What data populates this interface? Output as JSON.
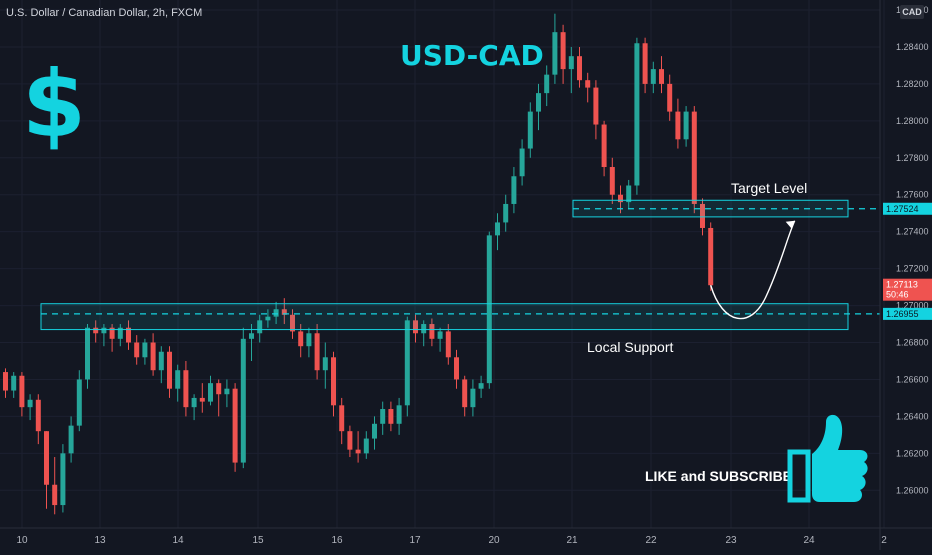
{
  "header": {
    "symbol_line": "U.S. Dollar / Canadian Dollar, 2h, FXCM",
    "currency_button": "CAD"
  },
  "annotations": {
    "title": "USD-CAD",
    "target_label": "Target Level",
    "support_label": "Local Support",
    "cta": "LIKE and SUBSCRIBE"
  },
  "colors": {
    "background": "#131722",
    "bull": "#26a69a",
    "bear": "#ef5350",
    "zone": "#14d3e0",
    "accent": "#14d3e0"
  },
  "icons": [
    "dollar-icon",
    "thumbs-up-icon"
  ],
  "chart_data": {
    "type": "candlestick",
    "symbol": "U.S. Dollar / Canadian Dollar",
    "interval": "2h",
    "source": "FXCM",
    "ylim": [
      1.2585,
      1.286
    ],
    "y_ticks": [
      "1.26000",
      "1.26200",
      "1.26400",
      "1.26600",
      "1.26800",
      "1.27000",
      "1.27200",
      "1.27400",
      "1.27600",
      "1.27800",
      "1.28000",
      "1.28200",
      "1.28400",
      "1.28600"
    ],
    "x_ticks": [
      "10",
      "13",
      "14",
      "15",
      "16",
      "17",
      "20",
      "21",
      "22",
      "23",
      "24",
      "2"
    ],
    "price_tags": {
      "target": "1.27524",
      "current": "1.27113",
      "countdown": "50:46",
      "support": "1.26955"
    },
    "zones": [
      {
        "name": "Target Level",
        "low": 1.2748,
        "high": 1.2757
      },
      {
        "name": "Local Support",
        "low": 1.2687,
        "high": 1.2701
      }
    ],
    "levels": [
      1.27524,
      1.26955
    ],
    "candles": [
      [
        1.2664,
        1.2666,
        1.265,
        1.2654
      ],
      [
        1.2654,
        1.2664,
        1.265,
        1.2662
      ],
      [
        1.2662,
        1.2664,
        1.264,
        1.2645
      ],
      [
        1.2645,
        1.2652,
        1.2638,
        1.2649
      ],
      [
        1.2649,
        1.2652,
        1.2625,
        1.2632
      ],
      [
        1.2632,
        1.2632,
        1.259,
        1.2603
      ],
      [
        1.2603,
        1.2618,
        1.2587,
        1.2592
      ],
      [
        1.2592,
        1.2625,
        1.2588,
        1.262
      ],
      [
        1.262,
        1.264,
        1.2615,
        1.2635
      ],
      [
        1.2635,
        1.2665,
        1.2632,
        1.266
      ],
      [
        1.266,
        1.269,
        1.2655,
        1.2688
      ],
      [
        1.2688,
        1.2692,
        1.268,
        1.2685
      ],
      [
        1.2685,
        1.269,
        1.2678,
        1.2688
      ],
      [
        1.2688,
        1.269,
        1.2675,
        1.2682
      ],
      [
        1.2682,
        1.269,
        1.2678,
        1.2688
      ],
      [
        1.2688,
        1.2692,
        1.2676,
        1.268
      ],
      [
        1.268,
        1.2684,
        1.2668,
        1.2672
      ],
      [
        1.2672,
        1.2682,
        1.2668,
        1.268
      ],
      [
        1.268,
        1.2685,
        1.2662,
        1.2665
      ],
      [
        1.2665,
        1.2678,
        1.2658,
        1.2675
      ],
      [
        1.2675,
        1.2678,
        1.265,
        1.2655
      ],
      [
        1.2655,
        1.2668,
        1.2648,
        1.2665
      ],
      [
        1.2665,
        1.267,
        1.264,
        1.2645
      ],
      [
        1.2645,
        1.2652,
        1.2638,
        1.265
      ],
      [
        1.265,
        1.2658,
        1.2642,
        1.2648
      ],
      [
        1.2648,
        1.2662,
        1.2646,
        1.2658
      ],
      [
        1.2658,
        1.266,
        1.264,
        1.2652
      ],
      [
        1.2652,
        1.266,
        1.2645,
        1.2655
      ],
      [
        1.2655,
        1.2658,
        1.261,
        1.2615
      ],
      [
        1.2615,
        1.2688,
        1.2612,
        1.2682
      ],
      [
        1.2682,
        1.269,
        1.267,
        1.2685
      ],
      [
        1.2685,
        1.2695,
        1.268,
        1.2692
      ],
      [
        1.2692,
        1.2698,
        1.2688,
        1.2694
      ],
      [
        1.2694,
        1.2702,
        1.269,
        1.2698
      ],
      [
        1.2698,
        1.2704,
        1.269,
        1.2695
      ],
      [
        1.2695,
        1.2698,
        1.2682,
        1.2686
      ],
      [
        1.2686,
        1.269,
        1.2672,
        1.2678
      ],
      [
        1.2678,
        1.2688,
        1.2672,
        1.2685
      ],
      [
        1.2685,
        1.269,
        1.266,
        1.2665
      ],
      [
        1.2665,
        1.268,
        1.2655,
        1.2672
      ],
      [
        1.2672,
        1.2675,
        1.264,
        1.2646
      ],
      [
        1.2646,
        1.265,
        1.2625,
        1.2632
      ],
      [
        1.2632,
        1.2635,
        1.2618,
        1.2622
      ],
      [
        1.2622,
        1.2632,
        1.2615,
        1.262
      ],
      [
        1.262,
        1.2632,
        1.2617,
        1.2628
      ],
      [
        1.2628,
        1.264,
        1.2622,
        1.2636
      ],
      [
        1.2636,
        1.2648,
        1.263,
        1.2644
      ],
      [
        1.2644,
        1.2648,
        1.2632,
        1.2636
      ],
      [
        1.2636,
        1.265,
        1.263,
        1.2646
      ],
      [
        1.2646,
        1.2694,
        1.264,
        1.2692
      ],
      [
        1.2692,
        1.2695,
        1.268,
        1.2685
      ],
      [
        1.2685,
        1.2692,
        1.2678,
        1.269
      ],
      [
        1.269,
        1.2693,
        1.2678,
        1.2682
      ],
      [
        1.2682,
        1.2688,
        1.2675,
        1.2686
      ],
      [
        1.2686,
        1.269,
        1.2668,
        1.2672
      ],
      [
        1.2672,
        1.2676,
        1.2655,
        1.266
      ],
      [
        1.266,
        1.2662,
        1.264,
        1.2645
      ],
      [
        1.2645,
        1.266,
        1.264,
        1.2655
      ],
      [
        1.2655,
        1.2662,
        1.265,
        1.2658
      ],
      [
        1.2658,
        1.274,
        1.2655,
        1.2738
      ],
      [
        1.2738,
        1.275,
        1.273,
        1.2745
      ],
      [
        1.2745,
        1.276,
        1.274,
        1.2755
      ],
      [
        1.2755,
        1.2775,
        1.275,
        1.277
      ],
      [
        1.277,
        1.279,
        1.2765,
        1.2785
      ],
      [
        1.2785,
        1.281,
        1.278,
        1.2805
      ],
      [
        1.2805,
        1.282,
        1.2795,
        1.2815
      ],
      [
        1.2815,
        1.283,
        1.2808,
        1.2825
      ],
      [
        1.2825,
        1.2858,
        1.282,
        1.2848
      ],
      [
        1.2848,
        1.2852,
        1.282,
        1.2828
      ],
      [
        1.2828,
        1.284,
        1.2815,
        1.2835
      ],
      [
        1.2835,
        1.284,
        1.2818,
        1.2822
      ],
      [
        1.2822,
        1.2826,
        1.281,
        1.2818
      ],
      [
        1.2818,
        1.2822,
        1.279,
        1.2798
      ],
      [
        1.2798,
        1.28,
        1.277,
        1.2775
      ],
      [
        1.2775,
        1.278,
        1.2755,
        1.276
      ],
      [
        1.276,
        1.2765,
        1.275,
        1.2756
      ],
      [
        1.2756,
        1.2768,
        1.2752,
        1.2765
      ],
      [
        1.2765,
        1.2845,
        1.276,
        1.2842
      ],
      [
        1.2842,
        1.2845,
        1.2815,
        1.282
      ],
      [
        1.282,
        1.2832,
        1.2815,
        1.2828
      ],
      [
        1.2828,
        1.2835,
        1.2815,
        1.282
      ],
      [
        1.282,
        1.2825,
        1.28,
        1.2805
      ],
      [
        1.2805,
        1.2812,
        1.2785,
        1.279
      ],
      [
        1.279,
        1.2808,
        1.2786,
        1.2805
      ],
      [
        1.2805,
        1.2808,
        1.275,
        1.2755
      ],
      [
        1.2755,
        1.2758,
        1.2738,
        1.2742
      ],
      [
        1.2742,
        1.2745,
        1.2708,
        1.2711
      ]
    ]
  }
}
